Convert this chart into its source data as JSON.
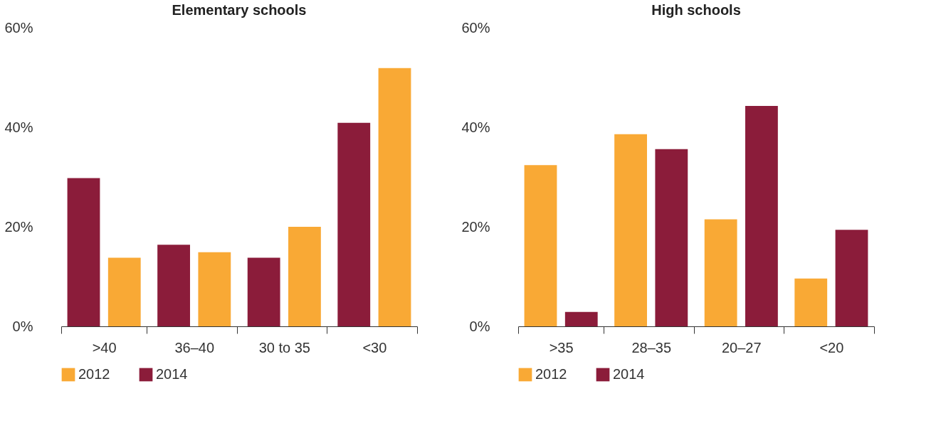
{
  "chart_data": [
    {
      "type": "bar",
      "title": "Elementary schools",
      "categories": [
        ">40",
        "36–40",
        "30 to 35",
        "<30"
      ],
      "series": [
        {
          "name": "2014",
          "color": "#8b1c3a",
          "values": [
            29.8,
            16.4,
            13.8,
            40.9
          ]
        },
        {
          "name": "2012",
          "color": "#f9a935",
          "values": [
            13.8,
            14.9,
            20.0,
            51.9
          ]
        }
      ],
      "ylim": [
        0,
        60
      ],
      "yticks": [
        {
          "value": 0,
          "label": "0%"
        },
        {
          "value": 20,
          "label": "20%"
        },
        {
          "value": 40,
          "label": "40%"
        },
        {
          "value": 60,
          "label": "60%"
        }
      ],
      "grid": false,
      "legend": "bottom"
    },
    {
      "type": "bar",
      "title": "High schools",
      "categories": [
        ">35",
        "28–35",
        "20–27",
        "<20"
      ],
      "series": [
        {
          "name": "2012",
          "color": "#f9a935",
          "values": [
            32.4,
            38.6,
            21.5,
            9.6
          ]
        },
        {
          "name": "2014",
          "color": "#8b1c3a",
          "values": [
            2.9,
            35.6,
            44.3,
            19.4
          ]
        }
      ],
      "ylim": [
        0,
        60
      ],
      "yticks": [
        {
          "value": 0,
          "label": "0%"
        },
        {
          "value": 20,
          "label": "20%"
        },
        {
          "value": 40,
          "label": "40%"
        },
        {
          "value": 60,
          "label": "60%"
        }
      ],
      "grid": false,
      "legend": "bottom"
    }
  ]
}
